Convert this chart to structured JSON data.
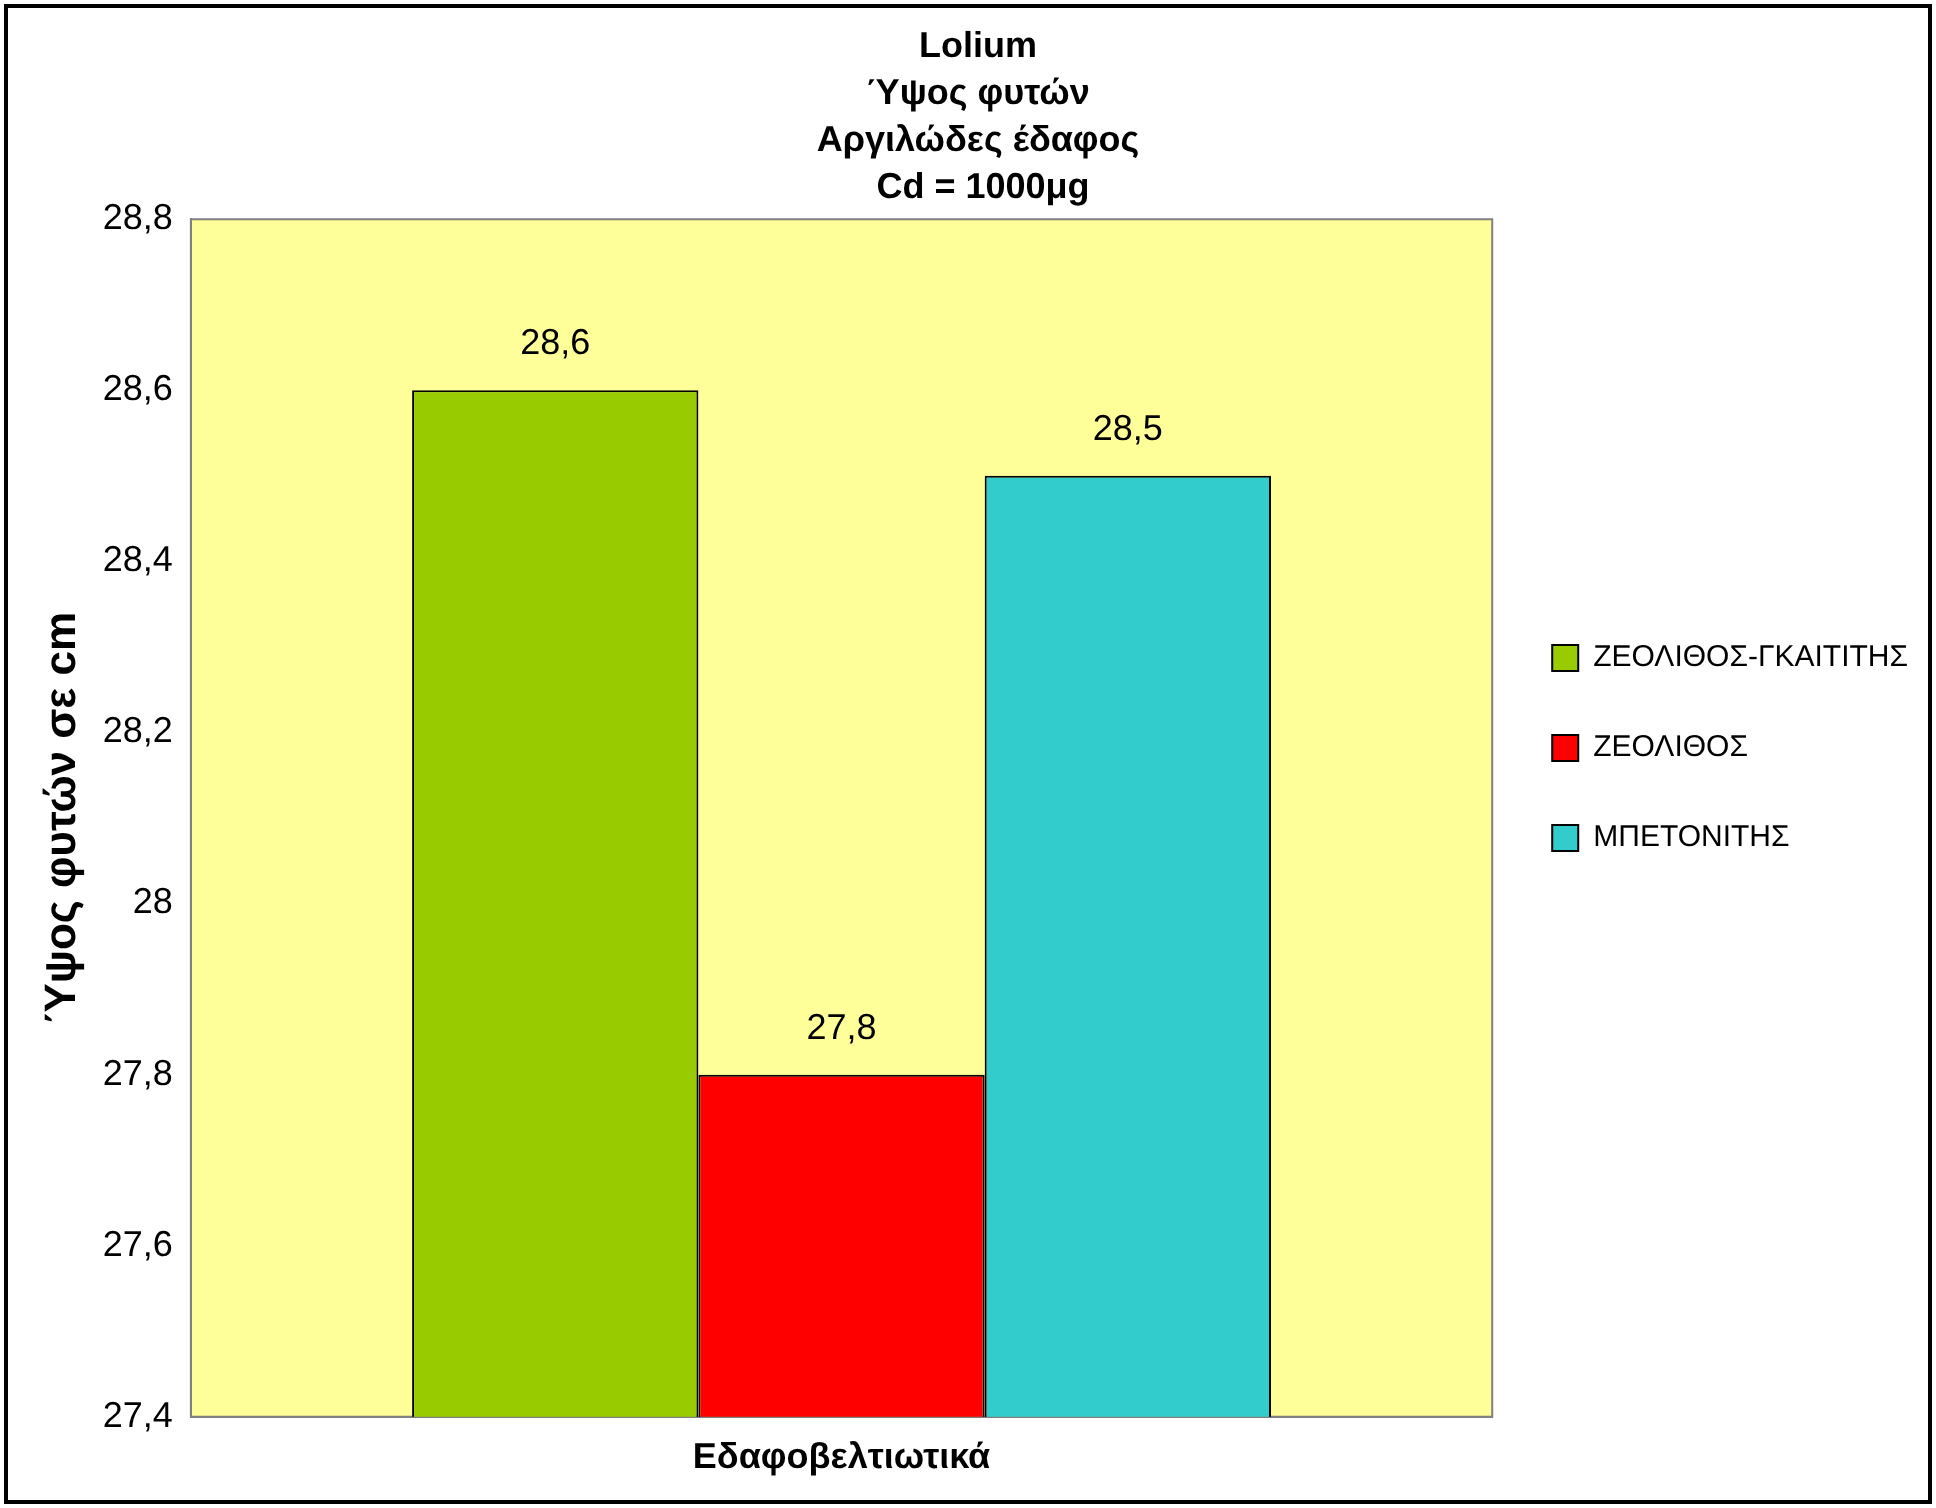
{
  "chart_data": {
    "type": "bar",
    "title": "Lolium\nΎψος φυτών\nΑργιλώδες έδαφος\n Cd = 1000μg",
    "xlabel": "Εδαφοβελτιωτικά",
    "ylabel": "Ύψος φυτών σε cm",
    "categories": [
      null
    ],
    "series": [
      {
        "name": "ΖΕΟΛΙΘΟΣ-ΓΚΑΙΤΙΤΗΣ",
        "color": "#99cc00",
        "values": [
          28.6
        ],
        "value_labels": [
          "28,6"
        ]
      },
      {
        "name": "ΖΕΟΛΙΘΟΣ",
        "color": "#ff0000",
        "values": [
          27.8
        ],
        "value_labels": [
          "27,8"
        ]
      },
      {
        "name": "ΜΠΕΤΟΝΙΤΗΣ",
        "color": "#33cccc",
        "values": [
          28.5
        ],
        "value_labels": [
          "28,5"
        ]
      }
    ],
    "ylim": [
      27.4,
      28.8
    ],
    "yticks": [
      {
        "value": 27.4,
        "label": "27,4"
      },
      {
        "value": 27.6,
        "label": "27,6"
      },
      {
        "value": 27.8,
        "label": "27,8"
      },
      {
        "value": 28,
        "label": "28"
      },
      {
        "value": 28.2,
        "label": "28,2"
      },
      {
        "value": 28.4,
        "label": "28,4"
      },
      {
        "value": 28.6,
        "label": "28,6"
      },
      {
        "value": 28.8,
        "label": "28,8"
      }
    ],
    "grid": false,
    "legend": "right"
  }
}
